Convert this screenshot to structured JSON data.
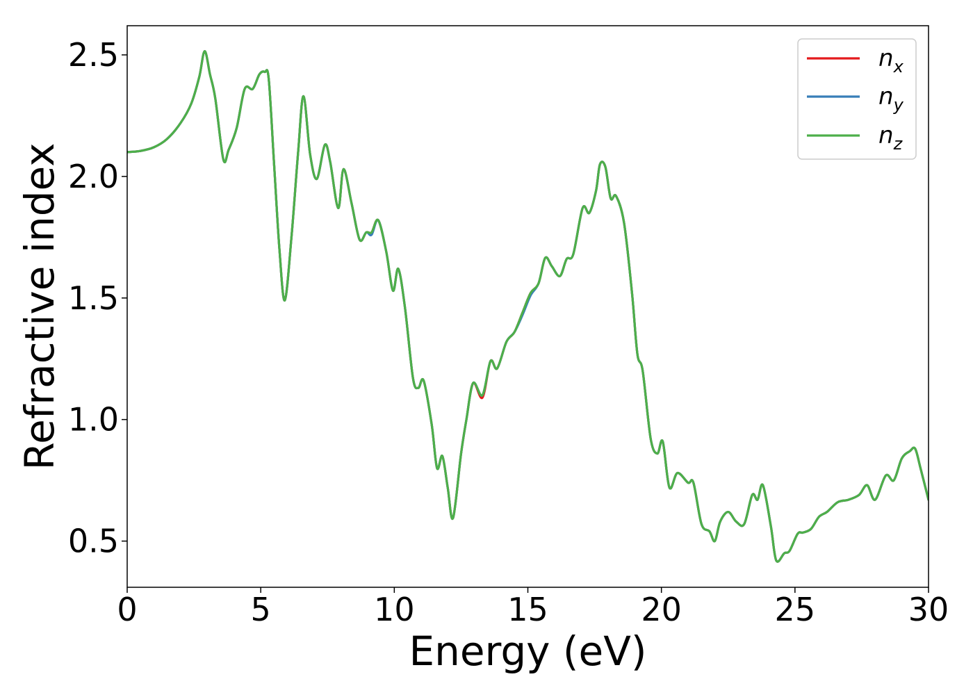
{
  "chart_data": {
    "type": "line",
    "title": "",
    "xlabel": "Energy (eV)",
    "ylabel": "Refractive index",
    "xlim": [
      0,
      30
    ],
    "ylim": [
      0.31,
      2.62
    ],
    "xticks": [
      0,
      5,
      10,
      15,
      20,
      25,
      30
    ],
    "xtick_labels": [
      "0",
      "5",
      "10",
      "15",
      "20",
      "25",
      "30"
    ],
    "yticks": [
      0.5,
      1.0,
      1.5,
      2.0,
      2.5
    ],
    "ytick_labels": [
      "0.5",
      "1.0",
      "1.5",
      "2.0",
      "2.5"
    ],
    "grid": false,
    "legend_position": "top-right",
    "series": [
      {
        "name": "n_x",
        "label_base": "n",
        "label_sub": "x",
        "color": "#e41a1c",
        "x": [
          0,
          0.5,
          1.0,
          1.5,
          2.0,
          2.4,
          2.7,
          2.9,
          3.1,
          3.3,
          3.6,
          3.8,
          4.1,
          4.4,
          4.7,
          4.95,
          5.15,
          5.3,
          5.5,
          5.7,
          5.9,
          6.15,
          6.4,
          6.6,
          6.85,
          7.1,
          7.4,
          7.6,
          7.9,
          8.1,
          8.4,
          8.7,
          8.95,
          9.15,
          9.4,
          9.7,
          9.95,
          10.15,
          10.4,
          10.7,
          10.9,
          11.1,
          11.4,
          11.6,
          11.8,
          12.0,
          12.2,
          12.5,
          12.7,
          12.95,
          13.3,
          13.6,
          13.85,
          14.2,
          14.5,
          14.8,
          15.1,
          15.4,
          15.65,
          15.9,
          16.2,
          16.45,
          16.7,
          17.05,
          17.3,
          17.55,
          17.7,
          17.9,
          18.1,
          18.3,
          18.6,
          18.9,
          19.1,
          19.3,
          19.6,
          19.85,
          20.05,
          20.3,
          20.6,
          21.0,
          21.2,
          21.5,
          21.8,
          22.0,
          22.2,
          22.5,
          22.8,
          23.1,
          23.4,
          23.6,
          23.8,
          24.1,
          24.3,
          24.6,
          24.8,
          25.1,
          25.3,
          25.6,
          25.9,
          26.2,
          26.6,
          27.0,
          27.4,
          27.7,
          28.0,
          28.4,
          28.7,
          29.0,
          29.3,
          29.5,
          29.7,
          30.0
        ],
        "y": [
          2.1,
          2.105,
          2.12,
          2.155,
          2.22,
          2.3,
          2.41,
          2.515,
          2.42,
          2.32,
          2.07,
          2.11,
          2.2,
          2.36,
          2.36,
          2.42,
          2.43,
          2.4,
          2.05,
          1.7,
          1.49,
          1.75,
          2.1,
          2.33,
          2.09,
          1.99,
          2.13,
          2.06,
          1.87,
          2.03,
          1.89,
          1.74,
          1.77,
          1.77,
          1.82,
          1.69,
          1.53,
          1.62,
          1.46,
          1.17,
          1.13,
          1.16,
          0.98,
          0.8,
          0.85,
          0.72,
          0.595,
          0.86,
          1.0,
          1.15,
          1.09,
          1.24,
          1.21,
          1.32,
          1.36,
          1.44,
          1.52,
          1.56,
          1.665,
          1.63,
          1.59,
          1.66,
          1.68,
          1.87,
          1.85,
          1.94,
          2.05,
          2.04,
          1.91,
          1.92,
          1.81,
          1.52,
          1.27,
          1.2,
          0.92,
          0.86,
          0.91,
          0.72,
          0.78,
          0.74,
          0.74,
          0.57,
          0.54,
          0.5,
          0.58,
          0.62,
          0.58,
          0.57,
          0.69,
          0.67,
          0.73,
          0.56,
          0.42,
          0.45,
          0.46,
          0.53,
          0.535,
          0.55,
          0.6,
          0.62,
          0.66,
          0.67,
          0.69,
          0.73,
          0.67,
          0.77,
          0.75,
          0.84,
          0.87,
          0.88,
          0.8,
          0.67
        ]
      },
      {
        "name": "n_y",
        "label_base": "n",
        "label_sub": "y",
        "color": "#377eb8",
        "x": [
          0,
          0.5,
          1.0,
          1.5,
          2.0,
          2.4,
          2.7,
          2.9,
          3.1,
          3.3,
          3.6,
          3.8,
          4.1,
          4.4,
          4.7,
          4.95,
          5.15,
          5.3,
          5.5,
          5.7,
          5.9,
          6.15,
          6.4,
          6.6,
          6.85,
          7.1,
          7.4,
          7.6,
          7.9,
          8.1,
          8.4,
          8.7,
          8.95,
          9.15,
          9.4,
          9.7,
          9.95,
          10.15,
          10.4,
          10.7,
          10.9,
          11.1,
          11.4,
          11.6,
          11.8,
          12.0,
          12.2,
          12.5,
          12.7,
          12.95,
          13.3,
          13.6,
          13.85,
          14.2,
          14.5,
          14.8,
          15.1,
          15.4,
          15.65,
          15.9,
          16.2,
          16.45,
          16.7,
          17.05,
          17.3,
          17.55,
          17.7,
          17.9,
          18.1,
          18.3,
          18.6,
          18.9,
          19.1,
          19.3,
          19.6,
          19.85,
          20.05,
          20.3,
          20.6,
          21.0,
          21.2,
          21.5,
          21.8,
          22.0,
          22.2,
          22.5,
          22.8,
          23.1,
          23.4,
          23.6,
          23.8,
          24.1,
          24.3,
          24.6,
          24.8,
          25.1,
          25.3,
          25.6,
          25.9,
          26.2,
          26.6,
          27.0,
          27.4,
          27.7,
          28.0,
          28.4,
          28.7,
          29.0,
          29.3,
          29.5,
          29.7,
          30.0
        ],
        "y": [
          2.1,
          2.105,
          2.12,
          2.155,
          2.22,
          2.3,
          2.41,
          2.515,
          2.42,
          2.32,
          2.07,
          2.11,
          2.2,
          2.36,
          2.36,
          2.42,
          2.43,
          2.4,
          2.05,
          1.7,
          1.49,
          1.75,
          2.1,
          2.33,
          2.09,
          1.99,
          2.13,
          2.06,
          1.87,
          2.03,
          1.89,
          1.74,
          1.77,
          1.76,
          1.82,
          1.69,
          1.53,
          1.62,
          1.46,
          1.17,
          1.13,
          1.16,
          0.98,
          0.8,
          0.85,
          0.72,
          0.595,
          0.86,
          1.0,
          1.15,
          1.1,
          1.24,
          1.21,
          1.32,
          1.36,
          1.43,
          1.51,
          1.56,
          1.665,
          1.63,
          1.59,
          1.66,
          1.68,
          1.87,
          1.85,
          1.94,
          2.05,
          2.04,
          1.91,
          1.92,
          1.81,
          1.52,
          1.27,
          1.2,
          0.92,
          0.86,
          0.91,
          0.72,
          0.78,
          0.74,
          0.74,
          0.57,
          0.54,
          0.5,
          0.58,
          0.62,
          0.58,
          0.57,
          0.69,
          0.67,
          0.73,
          0.56,
          0.42,
          0.45,
          0.46,
          0.53,
          0.535,
          0.55,
          0.6,
          0.62,
          0.66,
          0.67,
          0.69,
          0.73,
          0.67,
          0.77,
          0.75,
          0.84,
          0.87,
          0.88,
          0.8,
          0.67
        ]
      },
      {
        "name": "n_z",
        "label_base": "n",
        "label_sub": "z",
        "color": "#4daf4a",
        "x": [
          0,
          0.5,
          1.0,
          1.5,
          2.0,
          2.4,
          2.7,
          2.9,
          3.1,
          3.3,
          3.6,
          3.8,
          4.1,
          4.4,
          4.7,
          4.95,
          5.15,
          5.3,
          5.5,
          5.7,
          5.9,
          6.15,
          6.4,
          6.6,
          6.85,
          7.1,
          7.4,
          7.6,
          7.9,
          8.1,
          8.4,
          8.7,
          8.95,
          9.15,
          9.4,
          9.7,
          9.95,
          10.15,
          10.4,
          10.7,
          10.9,
          11.1,
          11.4,
          11.6,
          11.8,
          12.0,
          12.2,
          12.5,
          12.7,
          12.95,
          13.3,
          13.6,
          13.85,
          14.2,
          14.5,
          14.8,
          15.1,
          15.4,
          15.65,
          15.9,
          16.2,
          16.45,
          16.7,
          17.05,
          17.3,
          17.55,
          17.7,
          17.9,
          18.1,
          18.3,
          18.6,
          18.9,
          19.1,
          19.3,
          19.6,
          19.85,
          20.05,
          20.3,
          20.6,
          21.0,
          21.2,
          21.5,
          21.8,
          22.0,
          22.2,
          22.5,
          22.8,
          23.1,
          23.4,
          23.6,
          23.8,
          24.1,
          24.3,
          24.6,
          24.8,
          25.1,
          25.3,
          25.6,
          25.9,
          26.2,
          26.6,
          27.0,
          27.4,
          27.7,
          28.0,
          28.4,
          28.7,
          29.0,
          29.3,
          29.5,
          29.7,
          30.0
        ],
        "y": [
          2.1,
          2.105,
          2.12,
          2.155,
          2.22,
          2.3,
          2.41,
          2.515,
          2.42,
          2.32,
          2.07,
          2.11,
          2.2,
          2.36,
          2.36,
          2.42,
          2.43,
          2.4,
          2.05,
          1.7,
          1.49,
          1.75,
          2.1,
          2.33,
          2.09,
          1.99,
          2.13,
          2.06,
          1.87,
          2.03,
          1.89,
          1.74,
          1.77,
          1.77,
          1.82,
          1.69,
          1.53,
          1.62,
          1.46,
          1.17,
          1.13,
          1.16,
          0.98,
          0.8,
          0.85,
          0.72,
          0.595,
          0.86,
          1.0,
          1.15,
          1.1,
          1.24,
          1.21,
          1.32,
          1.36,
          1.44,
          1.52,
          1.56,
          1.665,
          1.63,
          1.59,
          1.66,
          1.68,
          1.87,
          1.85,
          1.94,
          2.05,
          2.04,
          1.91,
          1.92,
          1.81,
          1.52,
          1.27,
          1.2,
          0.92,
          0.86,
          0.91,
          0.72,
          0.78,
          0.74,
          0.74,
          0.57,
          0.54,
          0.5,
          0.58,
          0.62,
          0.58,
          0.57,
          0.69,
          0.67,
          0.73,
          0.56,
          0.42,
          0.45,
          0.46,
          0.53,
          0.535,
          0.55,
          0.6,
          0.62,
          0.66,
          0.67,
          0.69,
          0.73,
          0.67,
          0.77,
          0.75,
          0.84,
          0.87,
          0.88,
          0.8,
          0.67
        ]
      }
    ]
  }
}
